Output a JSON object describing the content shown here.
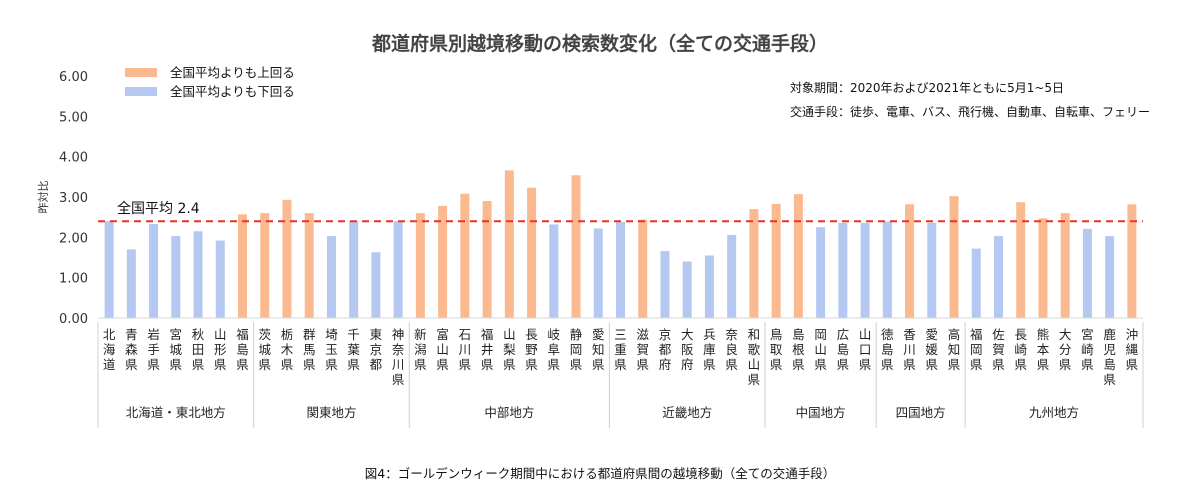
{
  "caption": "図4：ゴールデンウィーク期間中における都道府県間の越境移動（全ての交通手段）",
  "notes": {
    "period": "対象期間：2020年および2021年ともに5月1~5日",
    "transport": "交通手段：徒歩、電車、バス、飛行機、自動車、自転車、フェリー"
  },
  "chart_data": {
    "type": "bar",
    "title": "都道府県別越境移動の検索数変化（全ての交通手段）",
    "ylabel": "昨対比",
    "ylim": [
      0,
      6
    ],
    "yticks": [
      "0.00",
      "1.00",
      "2.00",
      "3.00",
      "4.00",
      "5.00",
      "6.00"
    ],
    "grid": false,
    "legend_position": "top-left",
    "colors": {
      "above": "#FBB98F",
      "below": "#B4C8F1",
      "average_line": "#E8322B"
    },
    "legend": [
      {
        "key": "above",
        "label": "全国平均よりも上回る"
      },
      {
        "key": "below",
        "label": "全国平均よりも下回る"
      }
    ],
    "average": {
      "value": 2.4,
      "label": "全国平均  2.4"
    },
    "categories": [
      "北海道",
      "青森県",
      "岩手県",
      "宮城県",
      "秋田県",
      "山形県",
      "福島県",
      "茨城県",
      "栃木県",
      "群馬県",
      "埼玉県",
      "千葉県",
      "東京都",
      "神奈川県",
      "新潟県",
      "富山県",
      "石川県",
      "福井県",
      "山梨県",
      "長野県",
      "岐阜県",
      "静岡県",
      "愛知県",
      "三重県",
      "滋賀県",
      "京都府",
      "大阪府",
      "兵庫県",
      "奈良県",
      "和歌山県",
      "鳥取県",
      "島根県",
      "岡山県",
      "広島県",
      "山口県",
      "徳島県",
      "香川県",
      "愛媛県",
      "高知県",
      "福岡県",
      "佐賀県",
      "長崎県",
      "熊本県",
      "大分県",
      "宮崎県",
      "鹿児島県",
      "沖縄県"
    ],
    "values": [
      2.4,
      1.7,
      2.33,
      2.03,
      2.15,
      1.92,
      2.57,
      2.6,
      2.93,
      2.6,
      2.03,
      2.4,
      1.63,
      2.4,
      2.6,
      2.78,
      3.08,
      2.9,
      3.66,
      3.23,
      2.32,
      3.54,
      2.22,
      2.38,
      2.44,
      1.66,
      1.4,
      1.55,
      2.06,
      2.7,
      2.83,
      3.07,
      2.25,
      2.36,
      2.36,
      2.39,
      2.82,
      2.36,
      3.02,
      1.72,
      2.03,
      2.87,
      2.47,
      2.6,
      2.21,
      2.03,
      2.82
    ],
    "groups": [
      {
        "name": "北海道・東北地方",
        "count": 7
      },
      {
        "name": "関東地方",
        "count": 7
      },
      {
        "name": "中部地方",
        "count": 9
      },
      {
        "name": "近畿地方",
        "count": 7
      },
      {
        "name": "中国地方",
        "count": 5
      },
      {
        "name": "四国地方",
        "count": 4
      },
      {
        "name": "九州地方",
        "count": 8
      }
    ]
  }
}
